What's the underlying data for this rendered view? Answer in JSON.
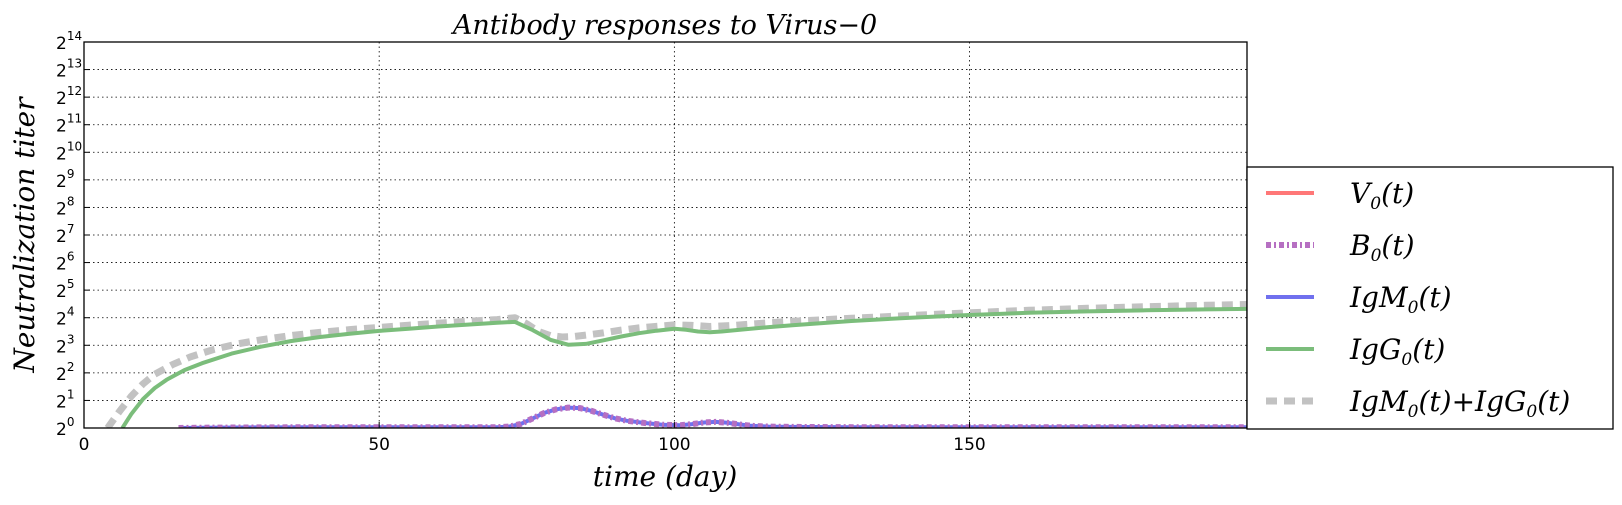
{
  "chart_data": {
    "type": "line",
    "title": "Antibody responses to Virus−0",
    "xlabel": "time (day)",
    "ylabel": "Neutralization  titer",
    "xlim": [
      0,
      197
    ],
    "ylim_log2": [
      0,
      14
    ],
    "y_scale": "log2",
    "grid": true,
    "legend_position": "outside right, lower",
    "x_ticks": [
      0,
      50,
      100,
      150
    ],
    "x_tick_labels": [
      "0",
      "50",
      "100",
      "150"
    ],
    "y_ticks_log2": [
      0,
      1,
      2,
      3,
      4,
      5,
      6,
      7,
      8,
      9,
      10,
      11,
      12,
      13,
      14
    ],
    "y_tick_base": "2",
    "y_tick_exponents": [
      "0",
      "1",
      "2",
      "3",
      "4",
      "5",
      "6",
      "7",
      "8",
      "9",
      "10",
      "11",
      "12",
      "13",
      "14"
    ],
    "series": [
      {
        "name": "V_0(t)",
        "legend_main": "V",
        "legend_sub": "0",
        "legend_rest": "(t)",
        "color": "#ff7777",
        "style": "solid",
        "x": [],
        "y_log2": []
      },
      {
        "name": "B_0(t)",
        "legend_main": "B",
        "legend_sub": "0",
        "legend_rest": "(t)",
        "color": "#b66fc2",
        "style": "dashdot",
        "x": [
          16,
          20,
          30,
          40,
          50,
          60,
          70,
          72,
          74,
          76,
          78,
          80,
          82,
          84,
          86,
          88,
          90,
          92,
          95,
          98,
          101,
          103,
          105,
          107,
          109,
          111,
          113,
          116,
          120,
          130,
          140,
          150,
          160,
          170,
          180,
          190,
          197
        ],
        "y_log2": [
          0,
          0.01,
          0.02,
          0.03,
          0.03,
          0.03,
          0.03,
          0.05,
          0.15,
          0.35,
          0.55,
          0.68,
          0.74,
          0.72,
          0.62,
          0.48,
          0.35,
          0.26,
          0.18,
          0.12,
          0.1,
          0.14,
          0.2,
          0.22,
          0.19,
          0.13,
          0.08,
          0.05,
          0.04,
          0.03,
          0.03,
          0.03,
          0.03,
          0.03,
          0.03,
          0.03,
          0.03
        ]
      },
      {
        "name": "IgM_0(t)",
        "legend_main": "IgM",
        "legend_sub": "0",
        "legend_rest": "(t)",
        "color": "#7070ee",
        "style": "solid",
        "x": [
          16,
          20,
          30,
          40,
          50,
          60,
          70,
          72,
          74,
          76,
          78,
          80,
          82,
          84,
          86,
          88,
          90,
          92,
          95,
          98,
          101,
          103,
          105,
          107,
          109,
          111,
          113,
          116,
          120,
          130,
          140,
          150,
          160,
          170,
          180,
          190,
          197
        ],
        "y_log2": [
          0,
          0.01,
          0.02,
          0.03,
          0.03,
          0.03,
          0.03,
          0.05,
          0.15,
          0.35,
          0.55,
          0.68,
          0.74,
          0.72,
          0.62,
          0.48,
          0.35,
          0.26,
          0.18,
          0.12,
          0.1,
          0.14,
          0.2,
          0.22,
          0.19,
          0.13,
          0.08,
          0.05,
          0.04,
          0.03,
          0.03,
          0.03,
          0.03,
          0.03,
          0.03,
          0.03,
          0.03
        ]
      },
      {
        "name": "IgG_0(t)",
        "legend_main": "IgG",
        "legend_sub": "0",
        "legend_rest": "(t)",
        "color": "#7bbd7b",
        "style": "solid",
        "x": [
          6.5,
          8,
          10,
          12,
          14,
          17,
          20,
          25,
          30,
          35,
          40,
          45,
          50,
          55,
          60,
          65,
          70,
          73,
          76,
          79,
          82,
          85,
          88,
          91,
          94,
          97,
          100,
          102,
          104,
          106,
          108,
          112,
          116,
          120,
          130,
          140,
          150,
          160,
          170,
          180,
          190,
          197
        ],
        "y_log2": [
          0,
          0.5,
          1.05,
          1.45,
          1.75,
          2.1,
          2.35,
          2.7,
          2.95,
          3.15,
          3.3,
          3.42,
          3.52,
          3.6,
          3.68,
          3.75,
          3.82,
          3.85,
          3.55,
          3.2,
          3.02,
          3.05,
          3.18,
          3.32,
          3.44,
          3.53,
          3.6,
          3.56,
          3.5,
          3.47,
          3.5,
          3.58,
          3.66,
          3.73,
          3.88,
          4.0,
          4.1,
          4.18,
          4.23,
          4.27,
          4.3,
          4.32
        ]
      },
      {
        "name": "IgM_0(t)+IgG_0(t)",
        "legend_main": "IgM",
        "legend_sub": "0",
        "legend_rest": "(t)+IgG",
        "legend_sub2": "0",
        "legend_rest2": "(t)",
        "color": "#c2c2c2",
        "style": "dashed",
        "x": [
          4,
          6,
          8,
          10,
          12,
          15,
          18,
          22,
          26,
          30,
          35,
          40,
          45,
          50,
          55,
          60,
          65,
          70,
          73,
          75,
          77,
          79,
          81,
          83,
          85,
          88,
          91,
          94,
          97,
          100,
          103,
          106,
          110,
          115,
          120,
          130,
          140,
          150,
          160,
          170,
          180,
          190,
          197
        ],
        "y_log2": [
          0,
          0.6,
          1.15,
          1.6,
          1.95,
          2.3,
          2.58,
          2.85,
          3.05,
          3.2,
          3.35,
          3.47,
          3.57,
          3.65,
          3.73,
          3.8,
          3.87,
          3.93,
          4.0,
          3.78,
          3.5,
          3.35,
          3.3,
          3.32,
          3.37,
          3.45,
          3.55,
          3.63,
          3.69,
          3.74,
          3.72,
          3.68,
          3.72,
          3.8,
          3.87,
          3.98,
          4.08,
          4.18,
          4.27,
          4.34,
          4.4,
          4.45,
          4.48
        ]
      }
    ]
  }
}
